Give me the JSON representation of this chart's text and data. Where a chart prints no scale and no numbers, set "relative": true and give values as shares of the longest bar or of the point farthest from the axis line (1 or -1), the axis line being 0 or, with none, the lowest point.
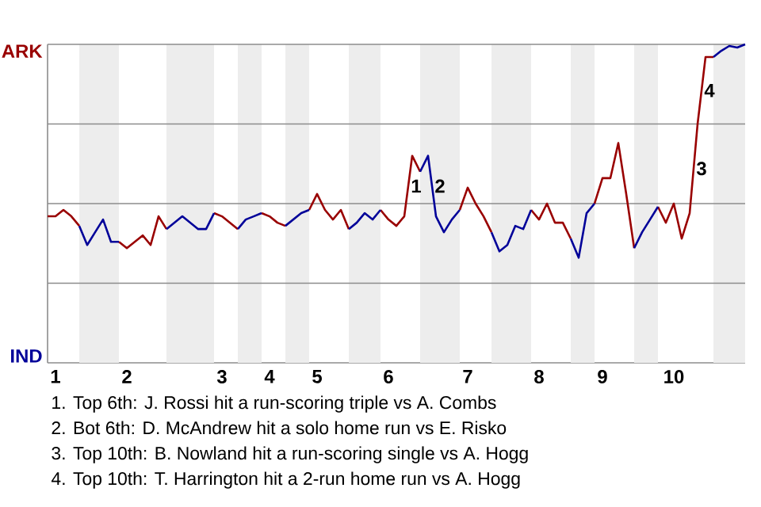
{
  "chart_data": {
    "type": "line",
    "categories": [
      null,
      "1",
      null,
      null,
      null,
      null,
      null,
      null,
      null,
      null,
      "2",
      null,
      null,
      null,
      null,
      null,
      null,
      null,
      null,
      null,
      null,
      null,
      "3",
      null,
      null,
      null,
      null,
      null,
      "4",
      null,
      null,
      null,
      null,
      null,
      "5",
      null,
      null,
      null,
      null,
      null,
      null,
      null,
      null,
      "6",
      null,
      null,
      null,
      null,
      null,
      null,
      null,
      null,
      null,
      "7",
      null,
      null,
      null,
      null,
      null,
      null,
      null,
      null,
      "8",
      null,
      null,
      null,
      null,
      null,
      null,
      null,
      "9",
      null,
      null,
      null,
      null,
      null,
      null,
      null,
      null,
      "10",
      null,
      null,
      null,
      null,
      null,
      null,
      null,
      null,
      null
    ],
    "series": [
      {
        "color": "#990000",
        "values": [
          0.46,
          0.46,
          0.48,
          0.46,
          0.43,
          null,
          null,
          null,
          null,
          0.38,
          0.36,
          0.38,
          0.4,
          0.37,
          0.46,
          0.42,
          null,
          null,
          null,
          null,
          null,
          0.47,
          0.46,
          0.44,
          0.42,
          null,
          null,
          0.47,
          0.46,
          0.44,
          0.43,
          null,
          null,
          0.48,
          0.53,
          0.48,
          0.45,
          0.48,
          0.42,
          null,
          null,
          null,
          0.48,
          0.45,
          0.43,
          0.46,
          0.65,
          0.6,
          null,
          null,
          null,
          null,
          0.48,
          0.55,
          0.5,
          0.46,
          0.41,
          null,
          null,
          null,
          null,
          0.48,
          0.45,
          0.5,
          0.44,
          0.44,
          0.39,
          null,
          null,
          0.5,
          0.58,
          0.58,
          0.69,
          0.53,
          0.36,
          null,
          null,
          0.49,
          0.44,
          0.5,
          0.39,
          0.47,
          0.75,
          0.96,
          0.96,
          null,
          null,
          null,
          null
        ]
      },
      {
        "color": "#000099",
        "values": [
          null,
          null,
          null,
          null,
          0.43,
          0.37,
          0.41,
          0.45,
          0.38,
          0.38,
          null,
          null,
          null,
          null,
          null,
          0.42,
          0.44,
          0.46,
          0.44,
          0.42,
          0.42,
          0.47,
          null,
          null,
          0.42,
          0.45,
          0.46,
          0.47,
          null,
          null,
          0.43,
          0.45,
          0.47,
          0.48,
          null,
          null,
          null,
          null,
          0.42,
          0.44,
          0.47,
          0.45,
          0.48,
          null,
          null,
          null,
          null,
          0.6,
          0.65,
          0.46,
          0.41,
          0.45,
          0.48,
          null,
          null,
          null,
          0.41,
          0.35,
          0.37,
          0.43,
          0.42,
          0.48,
          null,
          null,
          null,
          null,
          0.39,
          0.33,
          0.47,
          0.5,
          null,
          null,
          null,
          null,
          0.36,
          0.41,
          0.45,
          0.49,
          null,
          null,
          null,
          null,
          null,
          null,
          0.96,
          0.98,
          0.995,
          0.99,
          1
        ]
      }
    ],
    "relative": true,
    "grid": "y",
    "annotations": [
      "ARK",
      "IND",
      "1",
      "2",
      "3",
      "4",
      "1. Top 6th: J. Rossi hit a run-scoring triple vs A. Combs",
      "2. Bot 6th: D. McAndrew hit a solo home run vs E. Risko",
      "3. Top 10th: B. Nowland hit a run-scoring single vs A. Hogg",
      "4. Top 10th: T. Harrington hit a 2-run home run vs A. Hogg"
    ]
  }
}
